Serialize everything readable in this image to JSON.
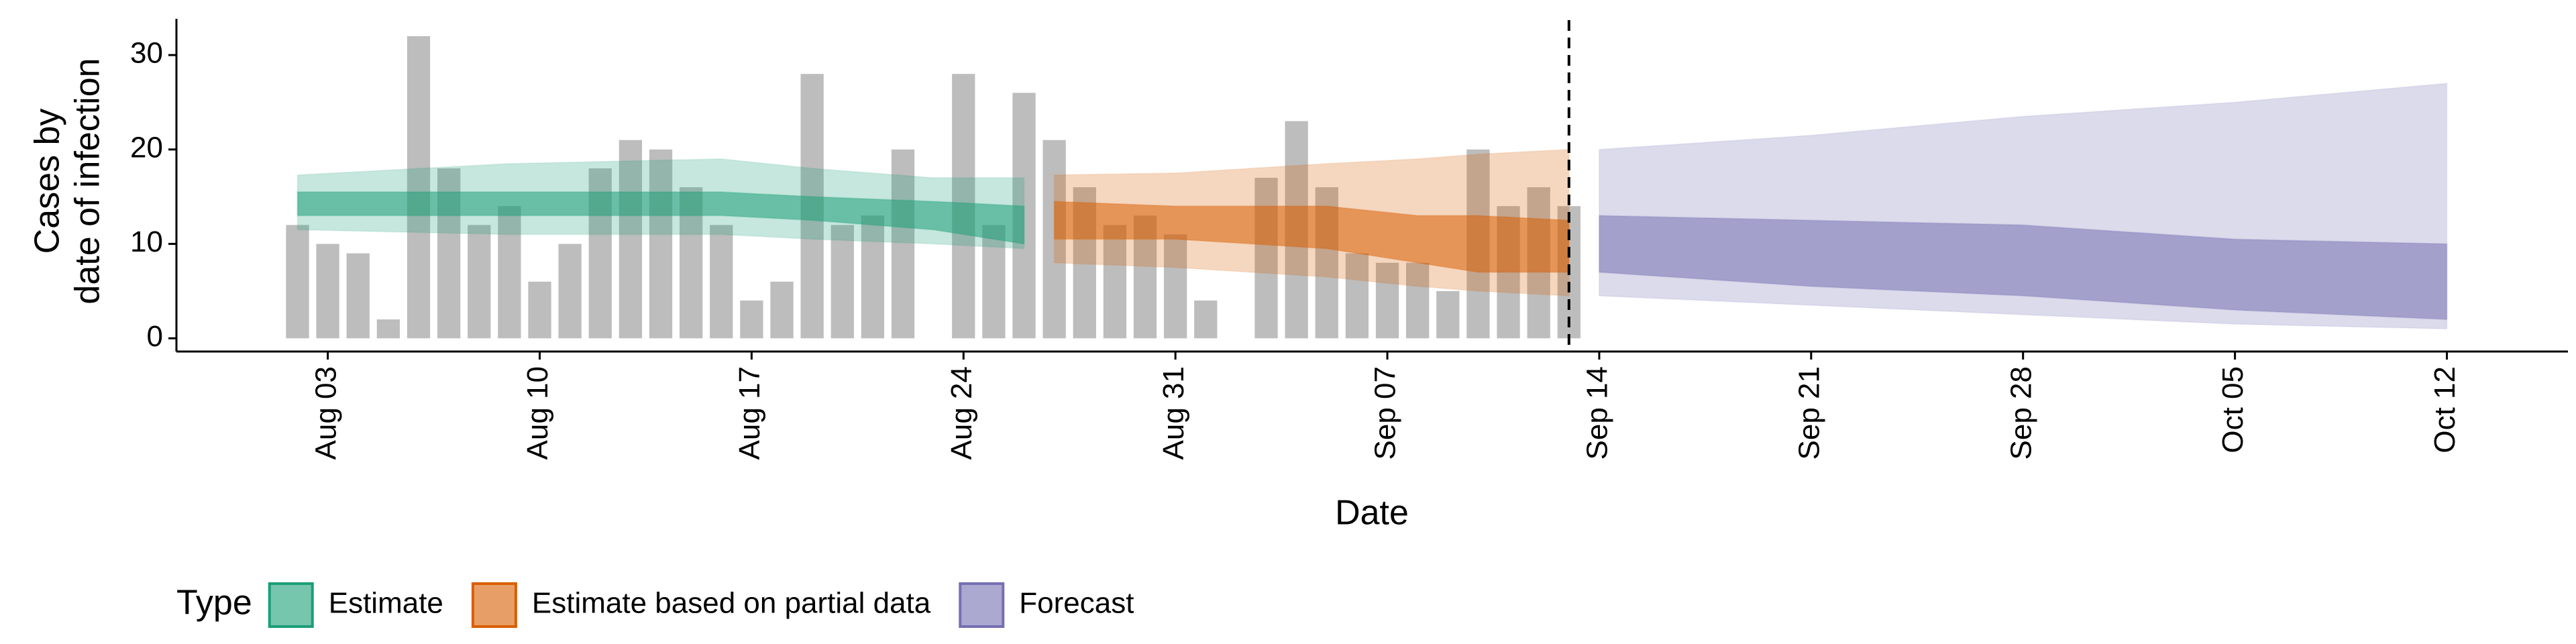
{
  "chart_data": {
    "type": "bar-ribbon",
    "y_label": [
      "Cases by",
      "date of infection"
    ],
    "x_label": "Date",
    "legend_title": "Type",
    "xlim": [
      "Jul 29",
      "Oct 16"
    ],
    "ylim": [
      -1.4,
      33.7
    ],
    "xticks": [
      "Aug 03",
      "Aug 10",
      "Aug 17",
      "Aug 24",
      "Aug 31",
      "Sep 07",
      "Sep 14",
      "Sep 21",
      "Sep 28",
      "Oct 05",
      "Oct 12"
    ],
    "yticks": [
      0,
      10,
      20,
      30
    ],
    "vline": "Sep 13",
    "bars": {
      "color": "#bdbdbd",
      "x": [
        "Aug 02",
        "Aug 03",
        "Aug 04",
        "Aug 05",
        "Aug 06",
        "Aug 07",
        "Aug 08",
        "Aug 09",
        "Aug 10",
        "Aug 11",
        "Aug 12",
        "Aug 13",
        "Aug 14",
        "Aug 15",
        "Aug 16",
        "Aug 17",
        "Aug 18",
        "Aug 19",
        "Aug 20",
        "Aug 21",
        "Aug 22",
        "Aug 23",
        "Aug 24",
        "Aug 25",
        "Aug 26",
        "Aug 27",
        "Aug 28",
        "Aug 29",
        "Aug 30",
        "Aug 31",
        "Sep 01",
        "Sep 02",
        "Sep 03",
        "Sep 04",
        "Sep 05",
        "Sep 06",
        "Sep 07",
        "Sep 08",
        "Sep 09",
        "Sep 10",
        "Sep 11",
        "Sep 12",
        "Sep 13"
      ],
      "values": [
        12,
        10,
        9,
        2,
        32,
        18,
        12,
        14,
        6,
        10,
        18,
        21,
        20,
        16,
        12,
        4,
        6,
        28,
        12,
        13,
        20,
        0,
        28,
        12,
        26,
        21,
        16,
        12,
        13,
        11,
        4,
        0,
        17,
        23,
        16,
        9,
        8,
        8,
        5,
        20,
        14,
        16,
        14
      ]
    },
    "series": [
      {
        "name": "Estimate",
        "color": "#1b9e77",
        "x": [
          "Aug 02",
          "Aug 09",
          "Aug 16",
          "Aug 19",
          "Aug 23",
          "Aug 26"
        ],
        "lower90": [
          11.5,
          11,
          11,
          10.5,
          10,
          9.5
        ],
        "lower50": [
          13,
          13,
          13,
          12.5,
          11.5,
          10
        ],
        "upper50": [
          15.5,
          15.5,
          15.5,
          15,
          14.5,
          14
        ],
        "upper90": [
          17.3,
          18.5,
          19,
          18,
          17,
          17
        ]
      },
      {
        "name": "Estimate based on partial data",
        "color": "#d95f02",
        "x": [
          "Aug 27",
          "Aug 31",
          "Sep 05",
          "Sep 08",
          "Sep 10",
          "Sep 13"
        ],
        "lower90": [
          8,
          7.5,
          6.5,
          5.5,
          5,
          4.5
        ],
        "lower50": [
          10.5,
          10.5,
          9.5,
          8,
          7,
          7
        ],
        "upper50": [
          14.5,
          14,
          14,
          13,
          13,
          12.5
        ],
        "upper90": [
          17.3,
          17.5,
          18.5,
          19,
          19.5,
          20
        ]
      },
      {
        "name": "Forecast",
        "color": "#7570b3",
        "x": [
          "Sep 14",
          "Sep 21",
          "Sep 28",
          "Oct 05",
          "Oct 12"
        ],
        "lower90": [
          4.5,
          3.5,
          2.5,
          1.5,
          1
        ],
        "lower50": [
          7,
          5.5,
          4.5,
          3,
          2
        ],
        "upper50": [
          13,
          12.5,
          12,
          10.5,
          10
        ],
        "upper90": [
          20,
          21.5,
          23.5,
          25,
          27
        ]
      }
    ]
  }
}
